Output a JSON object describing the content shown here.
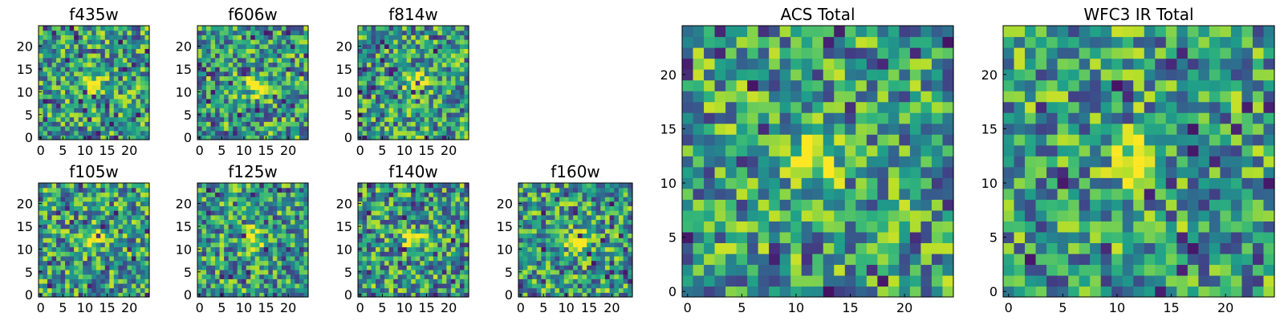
{
  "chart_data": [
    {
      "type": "heatmap",
      "title": "f435w",
      "colormap": "viridis",
      "grid": false,
      "xlim": [
        0,
        25
      ],
      "ylim": [
        0,
        25
      ],
      "n": 25,
      "xticks": [
        0,
        5,
        10,
        15,
        20
      ],
      "yticks": [
        0,
        5,
        10,
        15,
        20
      ],
      "hotspot": [
        12,
        11.5
      ],
      "seed": 11
    },
    {
      "type": "heatmap",
      "title": "f606w",
      "colormap": "viridis",
      "grid": false,
      "xlim": [
        0,
        25
      ],
      "ylim": [
        0,
        25
      ],
      "n": 25,
      "xticks": [
        0,
        5,
        10,
        15,
        20
      ],
      "yticks": [
        0,
        5,
        10,
        15,
        20
      ],
      "hotspot": [
        12.5,
        11.5
      ],
      "seed": 23
    },
    {
      "type": "heatmap",
      "title": "f814w",
      "colormap": "viridis",
      "grid": false,
      "xlim": [
        0,
        25
      ],
      "ylim": [
        0,
        25
      ],
      "n": 25,
      "xticks": [
        0,
        5,
        10,
        15,
        20
      ],
      "yticks": [
        0,
        5,
        10,
        15,
        20
      ],
      "hotspot": [
        12.5,
        12
      ],
      "seed": 37
    },
    {
      "type": "heatmap",
      "title": "f105w",
      "colormap": "viridis",
      "grid": false,
      "xlim": [
        0,
        25
      ],
      "ylim": [
        0,
        25
      ],
      "n": 25,
      "xticks": [
        0,
        5,
        10,
        15,
        20
      ],
      "yticks": [
        0,
        5,
        10,
        15,
        20
      ],
      "hotspot": [
        12,
        12.5
      ],
      "seed": 41
    },
    {
      "type": "heatmap",
      "title": "f125w",
      "colormap": "viridis",
      "grid": false,
      "xlim": [
        0,
        25
      ],
      "ylim": [
        0,
        25
      ],
      "n": 25,
      "xticks": [
        0,
        5,
        10,
        15,
        20
      ],
      "yticks": [
        0,
        5,
        10,
        15,
        20
      ],
      "hotspot": [
        12,
        12
      ],
      "seed": 53
    },
    {
      "type": "heatmap",
      "title": "f140w",
      "colormap": "viridis",
      "grid": false,
      "xlim": [
        0,
        25
      ],
      "ylim": [
        0,
        25
      ],
      "n": 25,
      "xticks": [
        0,
        5,
        10,
        15,
        20
      ],
      "yticks": [
        0,
        5,
        10,
        15,
        20
      ],
      "hotspot": [
        12,
        12
      ],
      "seed": 67
    },
    {
      "type": "heatmap",
      "title": "f160w",
      "colormap": "viridis",
      "grid": false,
      "xlim": [
        0,
        25
      ],
      "ylim": [
        0,
        25
      ],
      "n": 25,
      "xticks": [
        0,
        5,
        10,
        15,
        20
      ],
      "yticks": [
        0,
        5,
        10,
        15,
        20
      ],
      "hotspot": [
        12,
        12
      ],
      "seed": 79
    },
    {
      "type": "heatmap",
      "title": "ACS Total",
      "colormap": "viridis",
      "grid": false,
      "xlim": [
        0,
        25
      ],
      "ylim": [
        0,
        25
      ],
      "n": 25,
      "xticks": [
        0,
        5,
        10,
        15,
        20
      ],
      "yticks": [
        0,
        5,
        10,
        15,
        20
      ],
      "hotspot": [
        12,
        12
      ],
      "seed": 97
    },
    {
      "type": "heatmap",
      "title": "WFC3 IR Total",
      "colormap": "viridis",
      "grid": false,
      "xlim": [
        0,
        25
      ],
      "ylim": [
        0,
        25
      ],
      "n": 25,
      "xticks": [
        0,
        5,
        10,
        15,
        20
      ],
      "yticks": [
        0,
        5,
        10,
        15,
        20
      ],
      "hotspot": [
        12,
        12.5
      ],
      "seed": 131
    }
  ]
}
